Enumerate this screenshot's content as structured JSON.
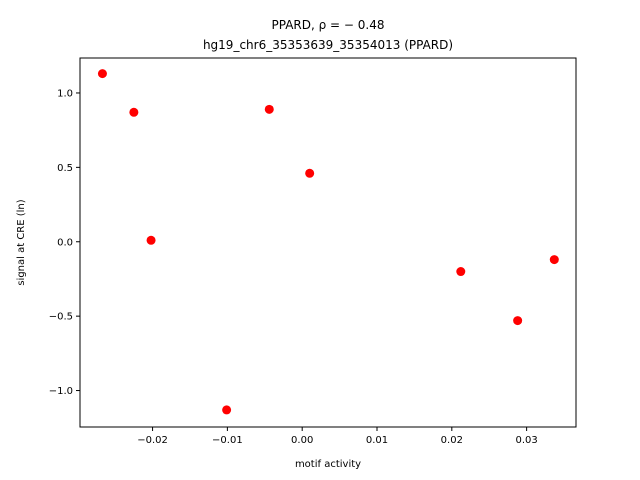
{
  "chart_data": {
    "type": "scatter",
    "title_line1": "PPARD, ρ = − 0.48",
    "title_line2": "hg19_chr6_35353639_35354013 (PPARD)",
    "xlabel": "motif activity",
    "ylabel": "signal at CRE (ln)",
    "xlim": [
      -0.0297,
      0.0366
    ],
    "ylim": [
      -1.245,
      1.235
    ],
    "xticks": [
      {
        "value": -0.02,
        "label": "−0.02"
      },
      {
        "value": -0.01,
        "label": "−0.01"
      },
      {
        "value": 0.0,
        "label": "0.00"
      },
      {
        "value": 0.01,
        "label": "0.01"
      },
      {
        "value": 0.02,
        "label": "0.02"
      },
      {
        "value": 0.03,
        "label": "0.03"
      }
    ],
    "yticks": [
      {
        "value": -1.0,
        "label": "−1.0"
      },
      {
        "value": -0.5,
        "label": "−0.5"
      },
      {
        "value": 0.0,
        "label": "0.0"
      },
      {
        "value": 0.5,
        "label": "0.5"
      },
      {
        "value": 1.0,
        "label": "1.0"
      }
    ],
    "grid": false,
    "marker_color": "#ff0000",
    "points": [
      {
        "x": -0.0267,
        "y": 1.13
      },
      {
        "x": -0.0225,
        "y": 0.87
      },
      {
        "x": -0.0202,
        "y": 0.01
      },
      {
        "x": -0.0101,
        "y": -1.13
      },
      {
        "x": -0.0044,
        "y": 0.89
      },
      {
        "x": 0.001,
        "y": 0.46
      },
      {
        "x": 0.0212,
        "y": -0.2
      },
      {
        "x": 0.0288,
        "y": -0.53
      },
      {
        "x": 0.0337,
        "y": -0.12
      }
    ]
  }
}
